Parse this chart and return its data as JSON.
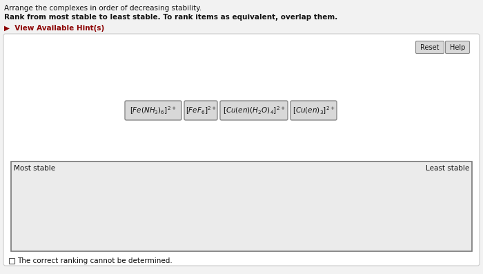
{
  "title_line1": "Arrange the complexes in order of decreasing stability.",
  "title_line2": "Rank from most stable to least stable. To rank items as equivalent, overlap them.",
  "hint_text": "▶  View Available Hint(s)",
  "complex_texts": [
    "$[Fe(NH_3)_6]^{2+}$",
    "$[FeF_6]^{2+}$",
    "$[Cu(en)(H_2O)_4]^{2+}$",
    "$[Cu(en)_3]^{2+}$"
  ],
  "most_stable_label": "Most stable",
  "least_stable_label": "Least stable",
  "checkbox_text": "The correct ranking cannot be determined.",
  "reset_btn": "Reset",
  "help_btn": "Help",
  "bg_color": "#f2f2f2",
  "panel_bg": "#ffffff",
  "box_bg": "#d8d8d8",
  "box_border": "#888888",
  "ranking_box_bg": "#ebebeb",
  "ranking_box_border": "#777777",
  "text_color": "#111111",
  "hint_color": "#8b0000",
  "panel_border": "#cccccc"
}
